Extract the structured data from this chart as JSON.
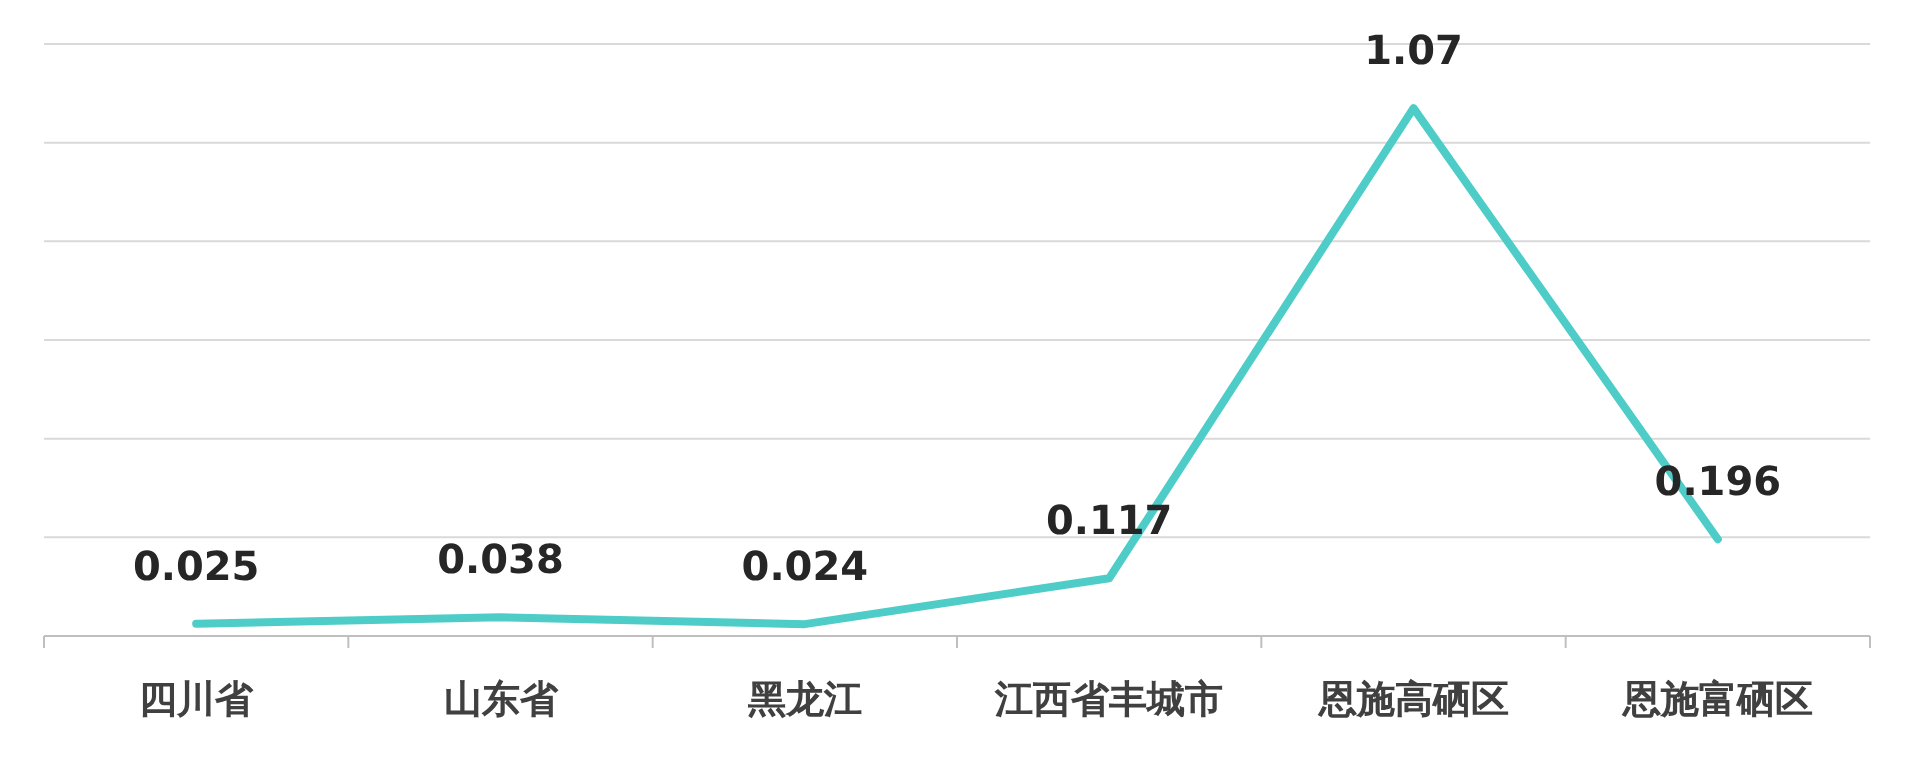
{
  "chart_data": {
    "type": "line",
    "categories": [
      "四川省",
      "山东省",
      "黑龙江",
      "江西省丰城市",
      "恩施高硒区",
      "恩施富硒区"
    ],
    "series": [
      {
        "color": "#4ecdc8",
        "values": [
          0.025,
          0.038,
          0.024,
          0.117,
          1.07,
          0.196
        ]
      }
    ],
    "ylim": [
      0,
      1.2
    ],
    "yticks": [
      {
        "value": 0,
        "label": null
      },
      {
        "value": 0.2,
        "label": null
      },
      {
        "value": 0.4,
        "label": null
      },
      {
        "value": 0.6,
        "label": null
      },
      {
        "value": 0.8,
        "label": null
      },
      {
        "value": 1.0,
        "label": null
      },
      {
        "value": 1.2,
        "label": null
      }
    ],
    "grid": "y",
    "tick_labels": "x",
    "data_labels": true
  }
}
